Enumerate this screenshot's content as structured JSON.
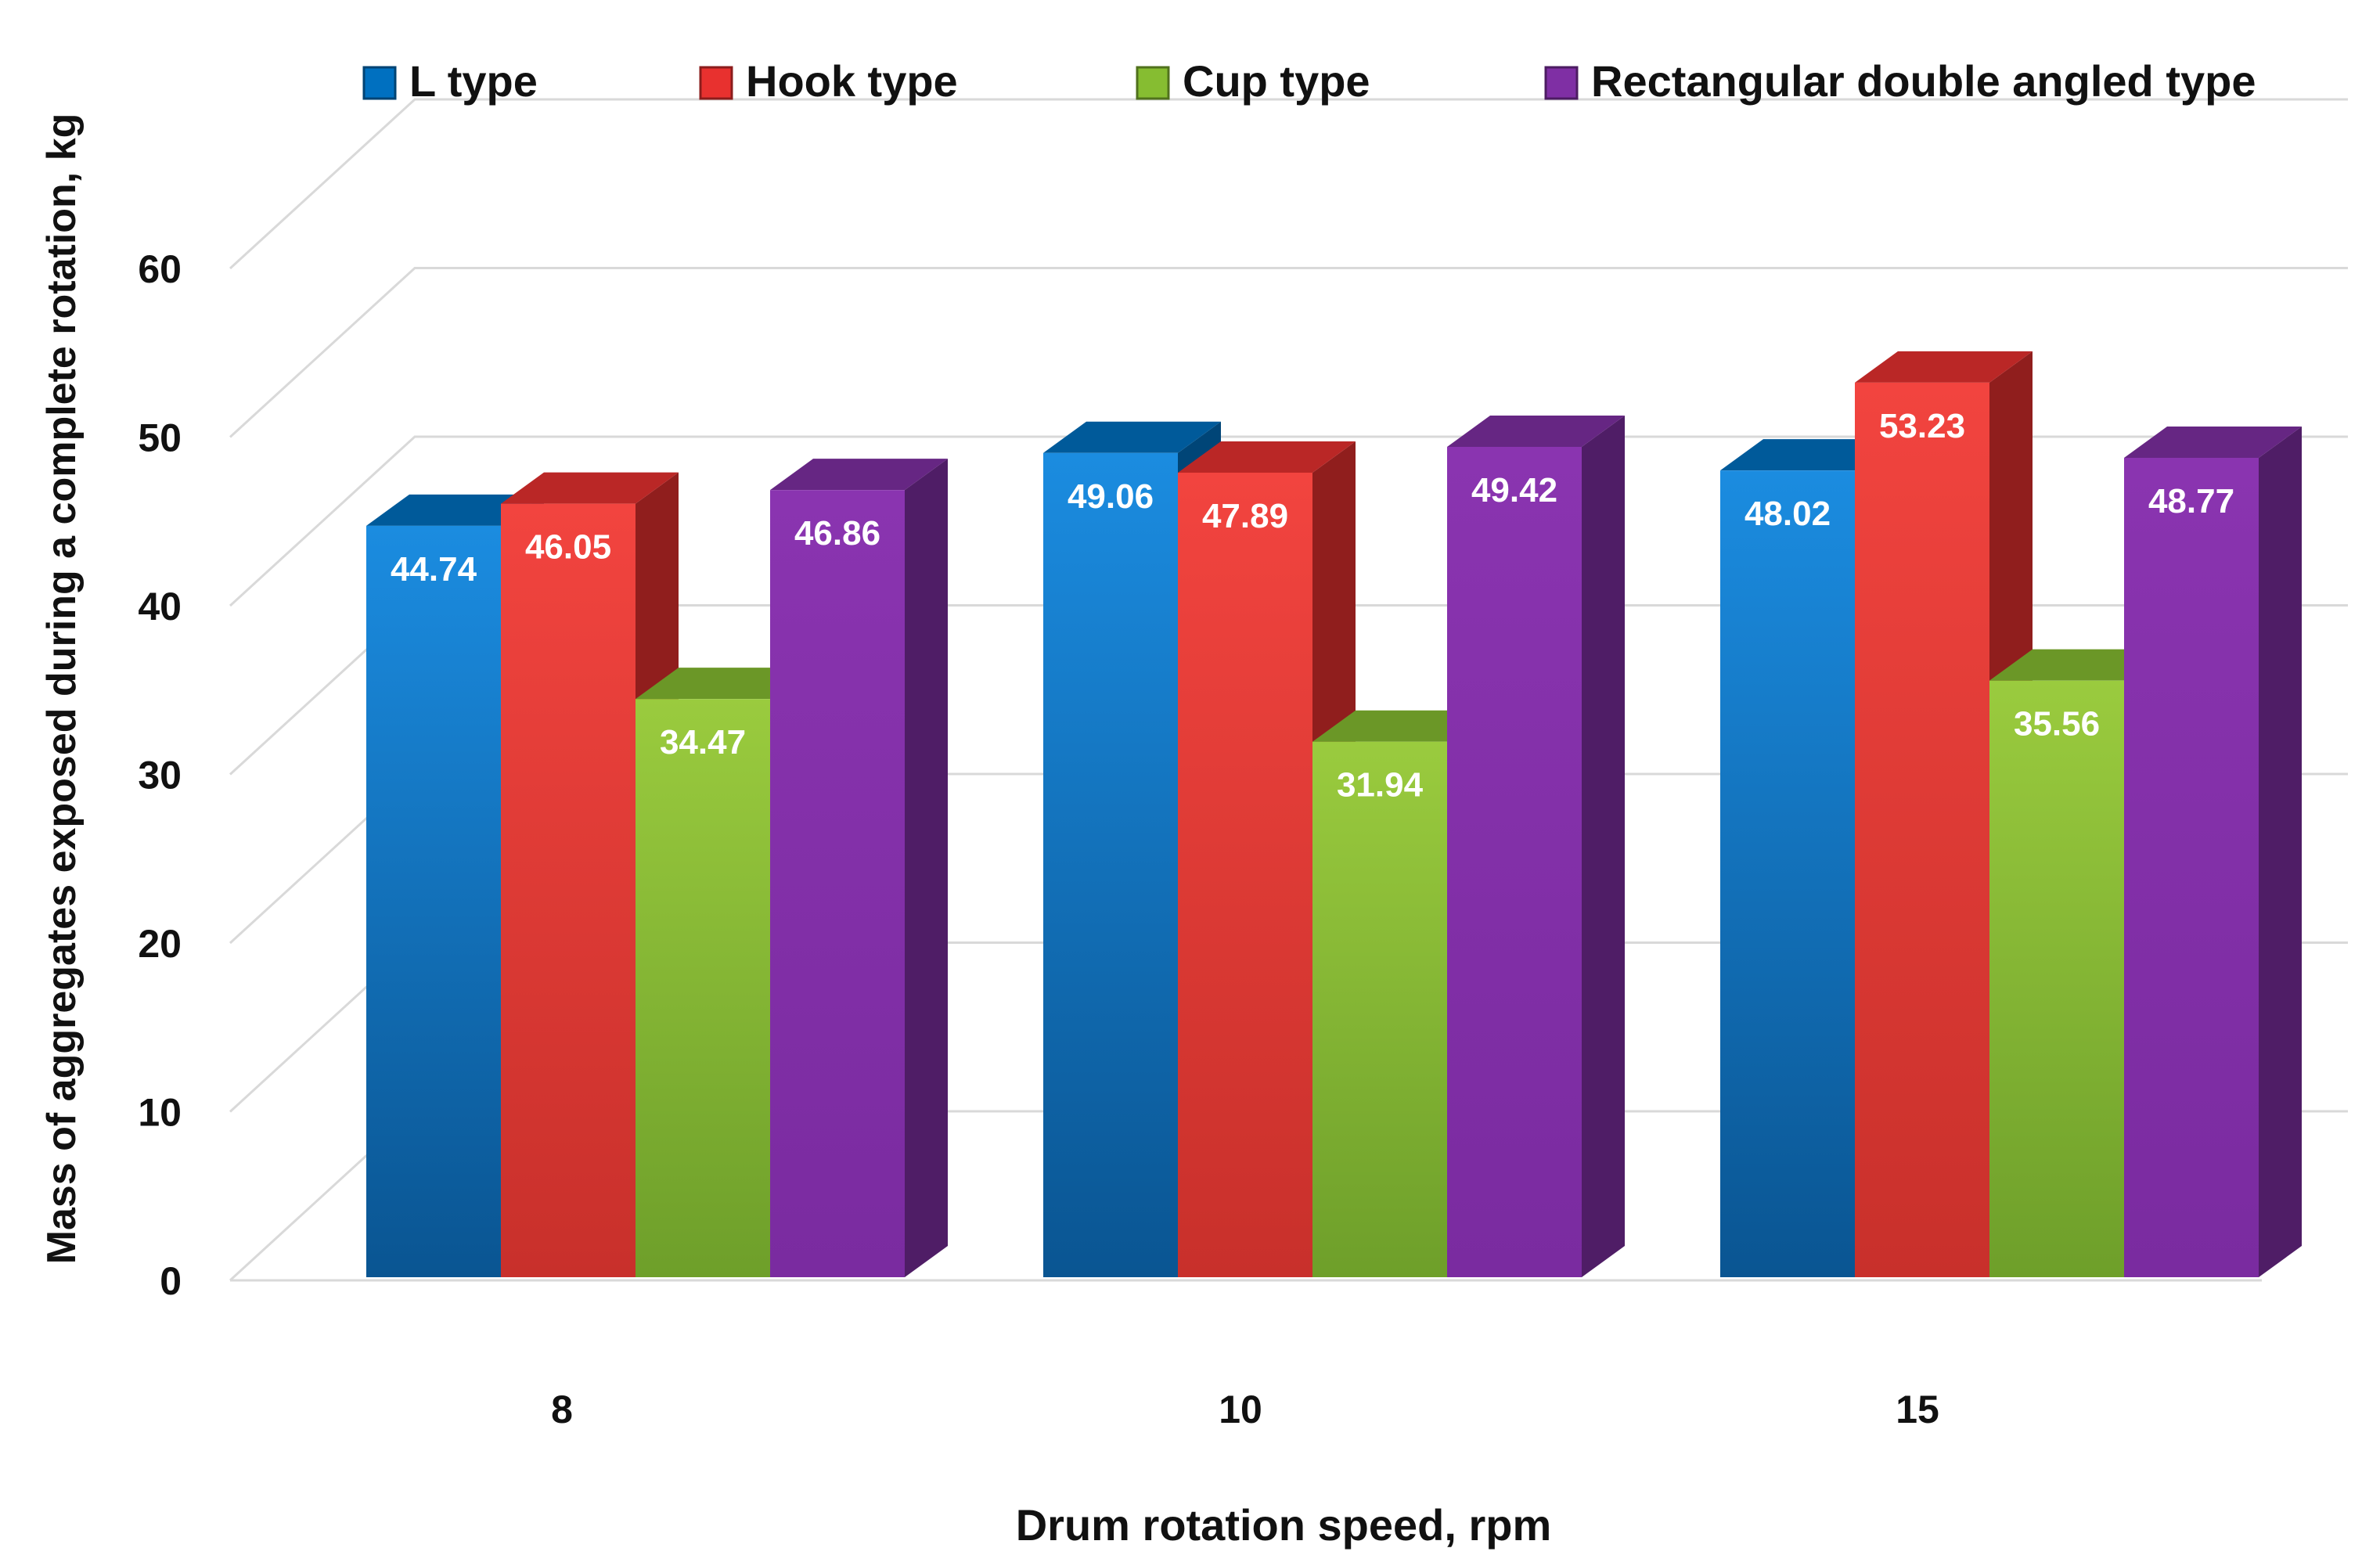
{
  "chart_data": {
    "type": "bar",
    "style": "3d-clustered-column",
    "title": "",
    "xlabel": "Drum rotation speed, rpm",
    "ylabel": "Mass of aggregates exposed during a complete rotation, kg",
    "categories": [
      "8",
      "10",
      "15"
    ],
    "ylim": [
      0,
      70
    ],
    "yticks": [
      0,
      10,
      20,
      30,
      40,
      50,
      60
    ],
    "grid": true,
    "legend_position": "top",
    "series": [
      {
        "name": "L type",
        "values": [
          44.74,
          49.06,
          48.02
        ],
        "color": "#0070C0"
      },
      {
        "name": "Hook type",
        "values": [
          46.05,
          47.89,
          53.23
        ],
        "color": "#E8312F"
      },
      {
        "name": "Cup type",
        "values": [
          34.47,
          31.94,
          35.56
        ],
        "color": "#86BD31"
      },
      {
        "name": "Rectangular double angled type",
        "values": [
          46.86,
          49.42,
          48.77
        ],
        "color": "#7F2FA4"
      }
    ]
  }
}
